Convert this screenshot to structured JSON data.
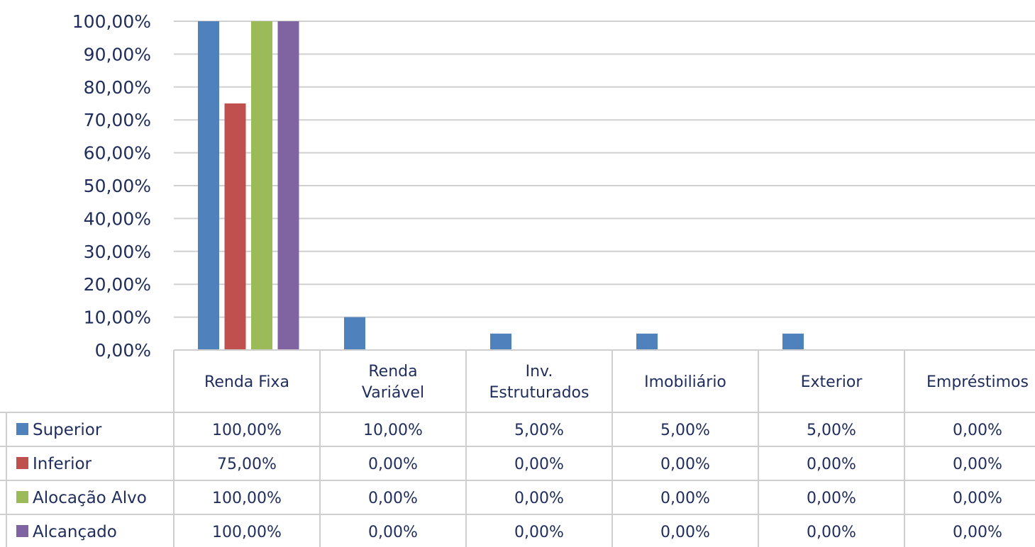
{
  "chart_data": {
    "type": "bar",
    "categories": [
      "Renda Fixa",
      "Renda Variável",
      "Inv. Estruturados",
      "Imobiliário",
      "Exterior",
      "Empréstimos"
    ],
    "category_lines": [
      [
        "Renda Fixa"
      ],
      [
        "Renda",
        "Variável"
      ],
      [
        "Inv.",
        "Estruturados"
      ],
      [
        "Imobiliário"
      ],
      [
        "Exterior"
      ],
      [
        "Empréstimos"
      ]
    ],
    "series": [
      {
        "name": "Superior",
        "color": "#4f81bd",
        "values": [
          100,
          10,
          5,
          5,
          5,
          0
        ],
        "labels": [
          "100,00%",
          "10,00%",
          "5,00%",
          "5,00%",
          "5,00%",
          "0,00%"
        ]
      },
      {
        "name": "Inferior",
        "color": "#c0504d",
        "values": [
          75,
          0,
          0,
          0,
          0,
          0
        ],
        "labels": [
          "75,00%",
          "0,00%",
          "0,00%",
          "0,00%",
          "0,00%",
          "0,00%"
        ]
      },
      {
        "name": "Alocação Alvo",
        "color": "#9bbb59",
        "values": [
          100,
          0,
          0,
          0,
          0,
          0
        ],
        "labels": [
          "100,00%",
          "0,00%",
          "0,00%",
          "0,00%",
          "0,00%",
          "0,00%"
        ]
      },
      {
        "name": "Alcançado",
        "color": "#8064a2",
        "values": [
          100,
          0,
          0,
          0,
          0,
          0
        ],
        "labels": [
          "100,00%",
          "0,00%",
          "0,00%",
          "0,00%",
          "0,00%",
          "0,00%"
        ]
      }
    ],
    "y_ticks": [
      "0,00%",
      "10,00%",
      "20,00%",
      "30,00%",
      "40,00%",
      "50,00%",
      "60,00%",
      "70,00%",
      "80,00%",
      "90,00%",
      "100,00%"
    ],
    "ylim": [
      0,
      100
    ],
    "grid": true,
    "legend": "data-table-below"
  }
}
